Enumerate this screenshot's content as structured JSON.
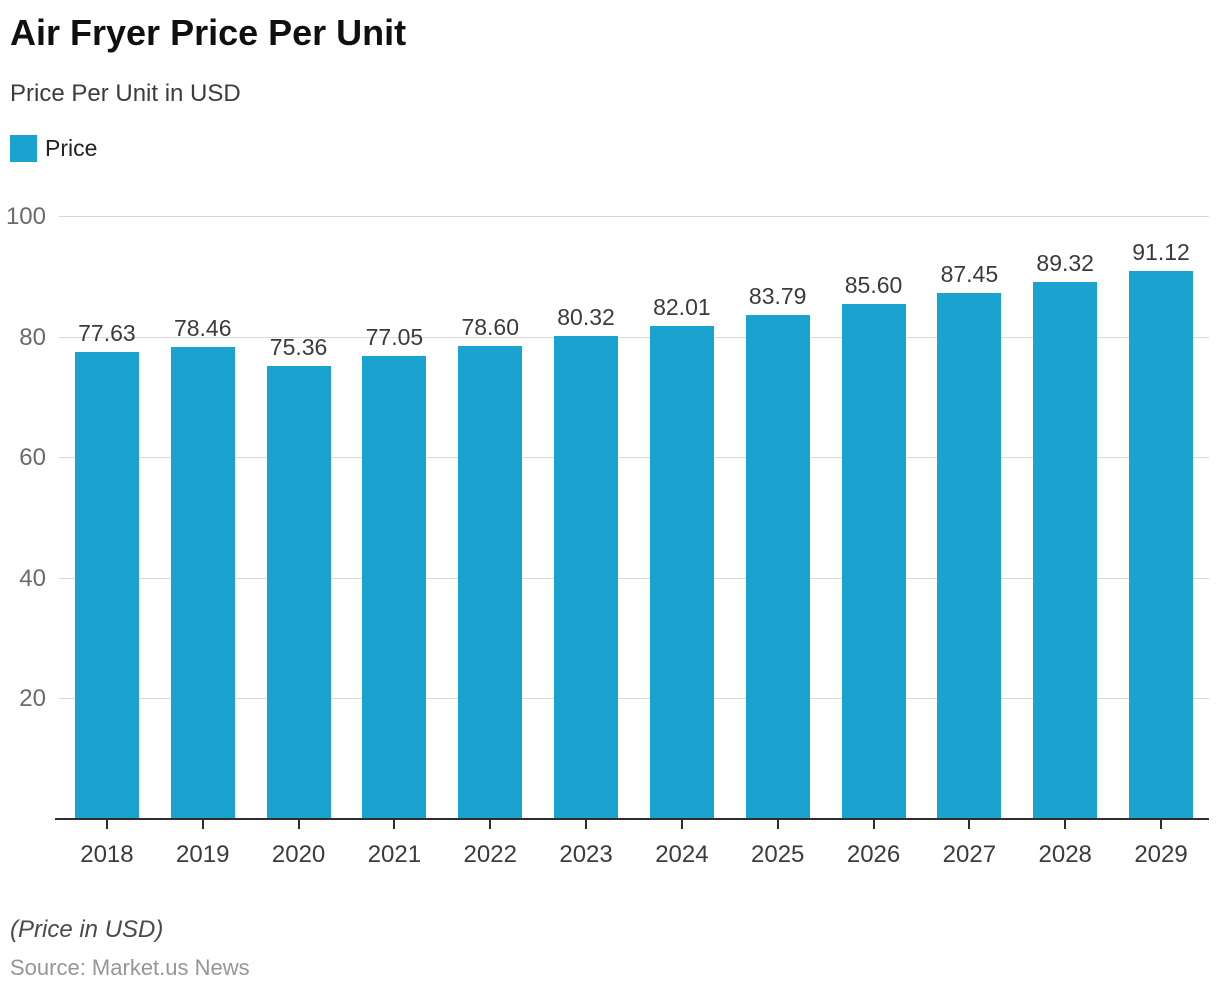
{
  "header": {
    "title": "Air Fryer Price Per Unit",
    "subtitle": "Price Per Unit in USD"
  },
  "legend": {
    "items": [
      {
        "label": "Price",
        "color": "#1aa3cf"
      }
    ]
  },
  "chart_data": {
    "type": "bar",
    "title": "Air Fryer Price Per Unit",
    "subtitle": "Price Per Unit in USD",
    "categories": [
      "2018",
      "2019",
      "2020",
      "2021",
      "2022",
      "2023",
      "2024",
      "2025",
      "2026",
      "2027",
      "2028",
      "2029"
    ],
    "series": [
      {
        "name": "Price",
        "color": "#1aa3cf",
        "values": [
          77.63,
          78.46,
          75.36,
          77.05,
          78.6,
          80.32,
          82.01,
          83.79,
          85.6,
          87.45,
          89.32,
          91.12
        ]
      }
    ],
    "value_labels": [
      "77.63",
      "78.46",
      "75.36",
      "77.05",
      "78.60",
      "80.32",
      "82.01",
      "83.79",
      "85.60",
      "87.45",
      "89.32",
      "91.12"
    ],
    "xlabel": "",
    "ylabel": "",
    "ylim": [
      0,
      100
    ],
    "y_ticks": [
      20,
      40,
      60,
      80,
      100
    ],
    "grid": "horizontal",
    "legend_position": "top-left",
    "colors": {
      "bar": "#1aa3cf",
      "gridline": "#d9d9d9",
      "axis_line": "#2e2e2e",
      "y_tick_label": "#6a6a6a",
      "x_tick_label": "#3b3b3b",
      "value_label": "#3b3b3b"
    }
  },
  "footer": {
    "note": "(Price in USD)",
    "source": "Source: Market.us News"
  }
}
